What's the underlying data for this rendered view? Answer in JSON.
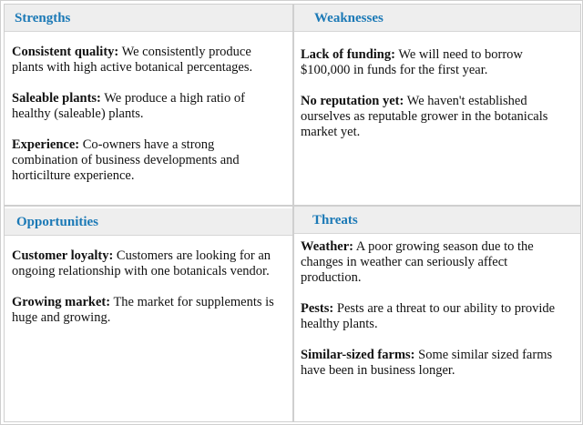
{
  "accent_color": "#1b79b6",
  "quadrants": [
    {
      "title": "Strengths",
      "items": [
        {
          "label": "Consistent quality:",
          "text": " We consistently produce plants with high active botanical percentages."
        },
        {
          "label": "Saleable plants:",
          "text": " We produce a high ratio of healthy (saleable) plants."
        },
        {
          "label": "Experience:",
          "text": " Co-owners have a strong combination of business developments and horticilture experience."
        }
      ]
    },
    {
      "title": "Weaknesses",
      "items": [
        {
          "label": "Lack of funding:",
          "text": " We will need to borrow $100,000 in funds for the first year."
        },
        {
          "label": "No reputation yet:",
          "text": " We haven't established ourselves as reputable grower in the botanicals market yet."
        }
      ]
    },
    {
      "title": "Opportunities",
      "items": [
        {
          "label": "Customer loyalty:",
          "text": " Customers are looking for an ongoing relationship with one botanicals vendor."
        },
        {
          "label": "Growing market:",
          "text": " The market for supplements is huge and growing."
        }
      ]
    },
    {
      "title": "Threats",
      "items": [
        {
          "label": "Weather:",
          "text": " A poor growing season due to the changes in weather can seriously affect production."
        },
        {
          "label": "Pests:",
          "text": " Pests are a threat to our ability to provide healthy plants."
        },
        {
          "label": "Similar-sized farms:",
          "text": " Some similar sized farms have been in business longer."
        }
      ]
    }
  ]
}
